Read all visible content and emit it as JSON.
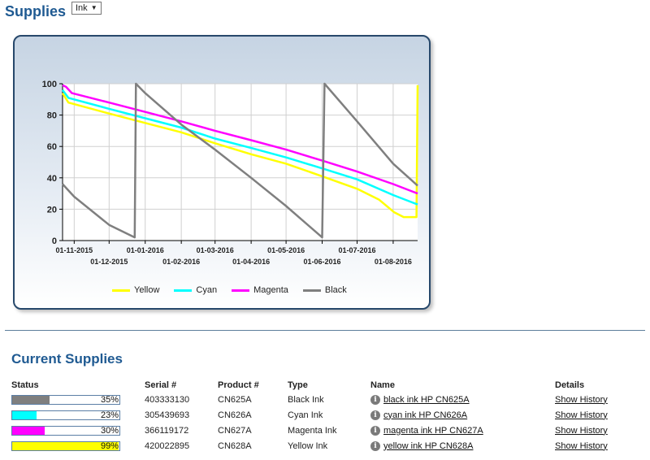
{
  "header": {
    "title": "Supplies",
    "select_value": "Ink"
  },
  "chart_data": {
    "type": "line",
    "ylim": [
      0,
      100
    ],
    "yticks": [
      0,
      20,
      40,
      60,
      80,
      100
    ],
    "xlim": [
      "2015-10-22",
      "2016-08-22"
    ],
    "xticks": [
      "2015-11-01",
      "2015-12-01",
      "2016-01-01",
      "2016-02-01",
      "2016-03-01",
      "2016-04-01",
      "2016-05-01",
      "2016-06-01",
      "2016-07-01",
      "2016-08-01"
    ],
    "xtick_labels": [
      "01-11-2015",
      "01-12-2015",
      "01-01-2016",
      "01-02-2016",
      "01-03-2016",
      "01-04-2016",
      "01-05-2016",
      "01-06-2016",
      "01-07-2016",
      "01-08-2016"
    ],
    "grid": true,
    "legend_position": "bottom",
    "series": [
      {
        "name": "Yellow",
        "color": "#ffff00",
        "points": [
          [
            "2015-10-22",
            94
          ],
          [
            "2015-10-27",
            88
          ],
          [
            "2015-12-01",
            81
          ],
          [
            "2016-01-01",
            75
          ],
          [
            "2016-02-01",
            69
          ],
          [
            "2016-03-01",
            62
          ],
          [
            "2016-04-01",
            55
          ],
          [
            "2016-05-01",
            49
          ],
          [
            "2016-06-01",
            41
          ],
          [
            "2016-07-01",
            33
          ],
          [
            "2016-07-20",
            26
          ],
          [
            "2016-08-02",
            18
          ],
          [
            "2016-08-10",
            15
          ],
          [
            "2016-08-21",
            15
          ],
          [
            "2016-08-22",
            99
          ]
        ]
      },
      {
        "name": "Cyan",
        "color": "#00ffff",
        "points": [
          [
            "2015-10-22",
            96
          ],
          [
            "2015-10-27",
            91
          ],
          [
            "2015-12-01",
            84
          ],
          [
            "2016-01-01",
            78
          ],
          [
            "2016-02-01",
            72
          ],
          [
            "2016-03-01",
            65
          ],
          [
            "2016-04-01",
            59
          ],
          [
            "2016-05-01",
            53
          ],
          [
            "2016-06-01",
            46
          ],
          [
            "2016-07-01",
            39
          ],
          [
            "2016-08-01",
            29
          ],
          [
            "2016-08-22",
            23
          ]
        ]
      },
      {
        "name": "Magenta",
        "color": "#ff00ff",
        "points": [
          [
            "2015-10-22",
            99
          ],
          [
            "2015-10-25",
            98
          ],
          [
            "2015-10-30",
            94
          ],
          [
            "2015-12-01",
            88
          ],
          [
            "2016-01-01",
            82
          ],
          [
            "2016-02-01",
            76
          ],
          [
            "2016-03-01",
            70
          ],
          [
            "2016-04-01",
            64
          ],
          [
            "2016-05-01",
            58
          ],
          [
            "2016-06-01",
            51
          ],
          [
            "2016-07-01",
            44
          ],
          [
            "2016-08-01",
            36
          ],
          [
            "2016-08-22",
            30
          ]
        ]
      },
      {
        "name": "Black",
        "color": "#7f7f7f",
        "points": [
          [
            "2015-10-22",
            36
          ],
          [
            "2015-11-01",
            28
          ],
          [
            "2015-12-01",
            10
          ],
          [
            "2015-12-23",
            2
          ],
          [
            "2015-12-24",
            100
          ],
          [
            "2016-01-01",
            94
          ],
          [
            "2016-02-01",
            74
          ],
          [
            "2016-03-01",
            58
          ],
          [
            "2016-04-01",
            40
          ],
          [
            "2016-05-01",
            22
          ],
          [
            "2016-06-01",
            2
          ],
          [
            "2016-06-03",
            100
          ],
          [
            "2016-07-01",
            76
          ],
          [
            "2016-08-01",
            49
          ],
          [
            "2016-08-22",
            35
          ]
        ]
      }
    ]
  },
  "section_title": "Current Supplies",
  "table": {
    "headers": {
      "status": "Status",
      "serial": "Serial #",
      "product": "Product #",
      "type": "Type",
      "name": "Name",
      "details": "Details"
    },
    "rows": [
      {
        "percent": 35,
        "percent_label": "35%",
        "color": "#7f7f7f",
        "serial": "403333130",
        "product": "CN625A",
        "type": "Black Ink",
        "name": "black ink HP CN625A",
        "details": "Show History"
      },
      {
        "percent": 23,
        "percent_label": "23%",
        "color": "#00ffff",
        "serial": "305439693",
        "product": "CN626A",
        "type": "Cyan Ink",
        "name": "cyan ink HP CN626A",
        "details": "Show History"
      },
      {
        "percent": 30,
        "percent_label": "30%",
        "color": "#ff00ff",
        "serial": "366119172",
        "product": "CN627A",
        "type": "Magenta Ink",
        "name": "magenta ink HP CN627A",
        "details": "Show History"
      },
      {
        "percent": 99,
        "percent_label": "99%",
        "color": "#ffff00",
        "serial": "420022895",
        "product": "CN628A",
        "type": "Yellow Ink",
        "name": "yellow ink HP CN628A",
        "details": "Show History"
      }
    ]
  }
}
